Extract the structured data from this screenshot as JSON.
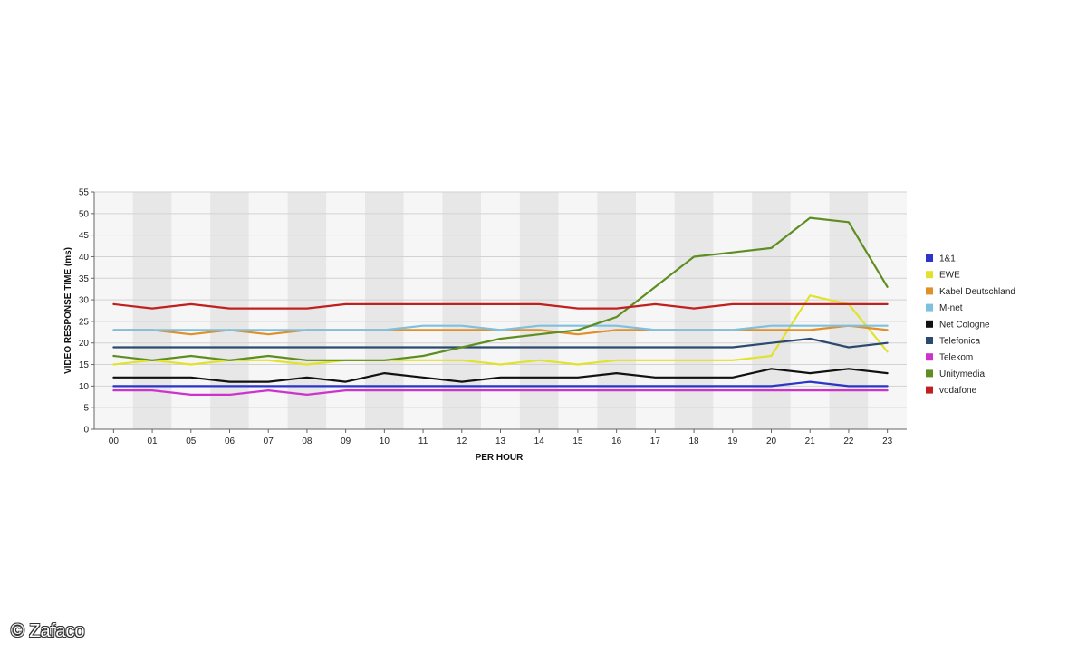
{
  "chart_data": {
    "type": "line",
    "xlabel": "PER HOUR",
    "ylabel": "VIDEO RESPONSE TIME (ms)",
    "ylim": [
      0,
      55
    ],
    "ytick_step": 5,
    "grid": true,
    "legend_position": "right",
    "categories": [
      "00",
      "01",
      "05",
      "06",
      "07",
      "08",
      "09",
      "10",
      "11",
      "12",
      "13",
      "14",
      "15",
      "16",
      "17",
      "18",
      "19",
      "20",
      "21",
      "22",
      "23"
    ],
    "series": [
      {
        "name": "1&1",
        "color": "#2b35c8",
        "values": [
          10,
          10,
          10,
          10,
          10,
          10,
          10,
          10,
          10,
          10,
          10,
          10,
          10,
          10,
          10,
          10,
          10,
          10,
          11,
          10,
          10
        ]
      },
      {
        "name": "EWE",
        "color": "#e2e22e",
        "values": [
          15,
          16,
          15,
          16,
          16,
          15,
          16,
          16,
          16,
          16,
          15,
          16,
          15,
          16,
          16,
          16,
          16,
          17,
          31,
          29,
          18
        ]
      },
      {
        "name": "Kabel Deutschland",
        "color": "#e0902a",
        "values": [
          23,
          23,
          22,
          23,
          22,
          23,
          23,
          23,
          23,
          23,
          23,
          23,
          22,
          23,
          23,
          23,
          23,
          23,
          23,
          24,
          23
        ]
      },
      {
        "name": "M-net",
        "color": "#7fc0de",
        "values": [
          23,
          23,
          23,
          23,
          23,
          23,
          23,
          23,
          24,
          24,
          23,
          24,
          24,
          24,
          23,
          23,
          23,
          24,
          24,
          24,
          24
        ]
      },
      {
        "name": "Net Cologne",
        "color": "#111111",
        "values": [
          12,
          12,
          12,
          11,
          11,
          12,
          11,
          13,
          12,
          11,
          12,
          12,
          12,
          13,
          12,
          12,
          12,
          14,
          13,
          14,
          13
        ]
      },
      {
        "name": "Telefonica",
        "color": "#2c4a6e",
        "values": [
          19,
          19,
          19,
          19,
          19,
          19,
          19,
          19,
          19,
          19,
          19,
          19,
          19,
          19,
          19,
          19,
          19,
          20,
          21,
          19,
          20
        ]
      },
      {
        "name": "Telekom",
        "color": "#cc33cc",
        "values": [
          9,
          9,
          8,
          8,
          9,
          8,
          9,
          9,
          9,
          9,
          9,
          9,
          9,
          9,
          9,
          9,
          9,
          9,
          9,
          9,
          9
        ]
      },
      {
        "name": "Unitymedia",
        "color": "#5e8e22",
        "values": [
          17,
          16,
          17,
          16,
          17,
          16,
          16,
          16,
          17,
          19,
          21,
          22,
          23,
          26,
          33,
          40,
          41,
          42,
          49,
          48,
          33
        ]
      },
      {
        "name": "vodafone",
        "color": "#c0201e",
        "values": [
          29,
          28,
          29,
          28,
          28,
          28,
          29,
          29,
          29,
          29,
          29,
          29,
          28,
          28,
          29,
          28,
          29,
          29,
          29,
          29,
          29
        ]
      }
    ]
  },
  "watermark": "© Zafaco"
}
